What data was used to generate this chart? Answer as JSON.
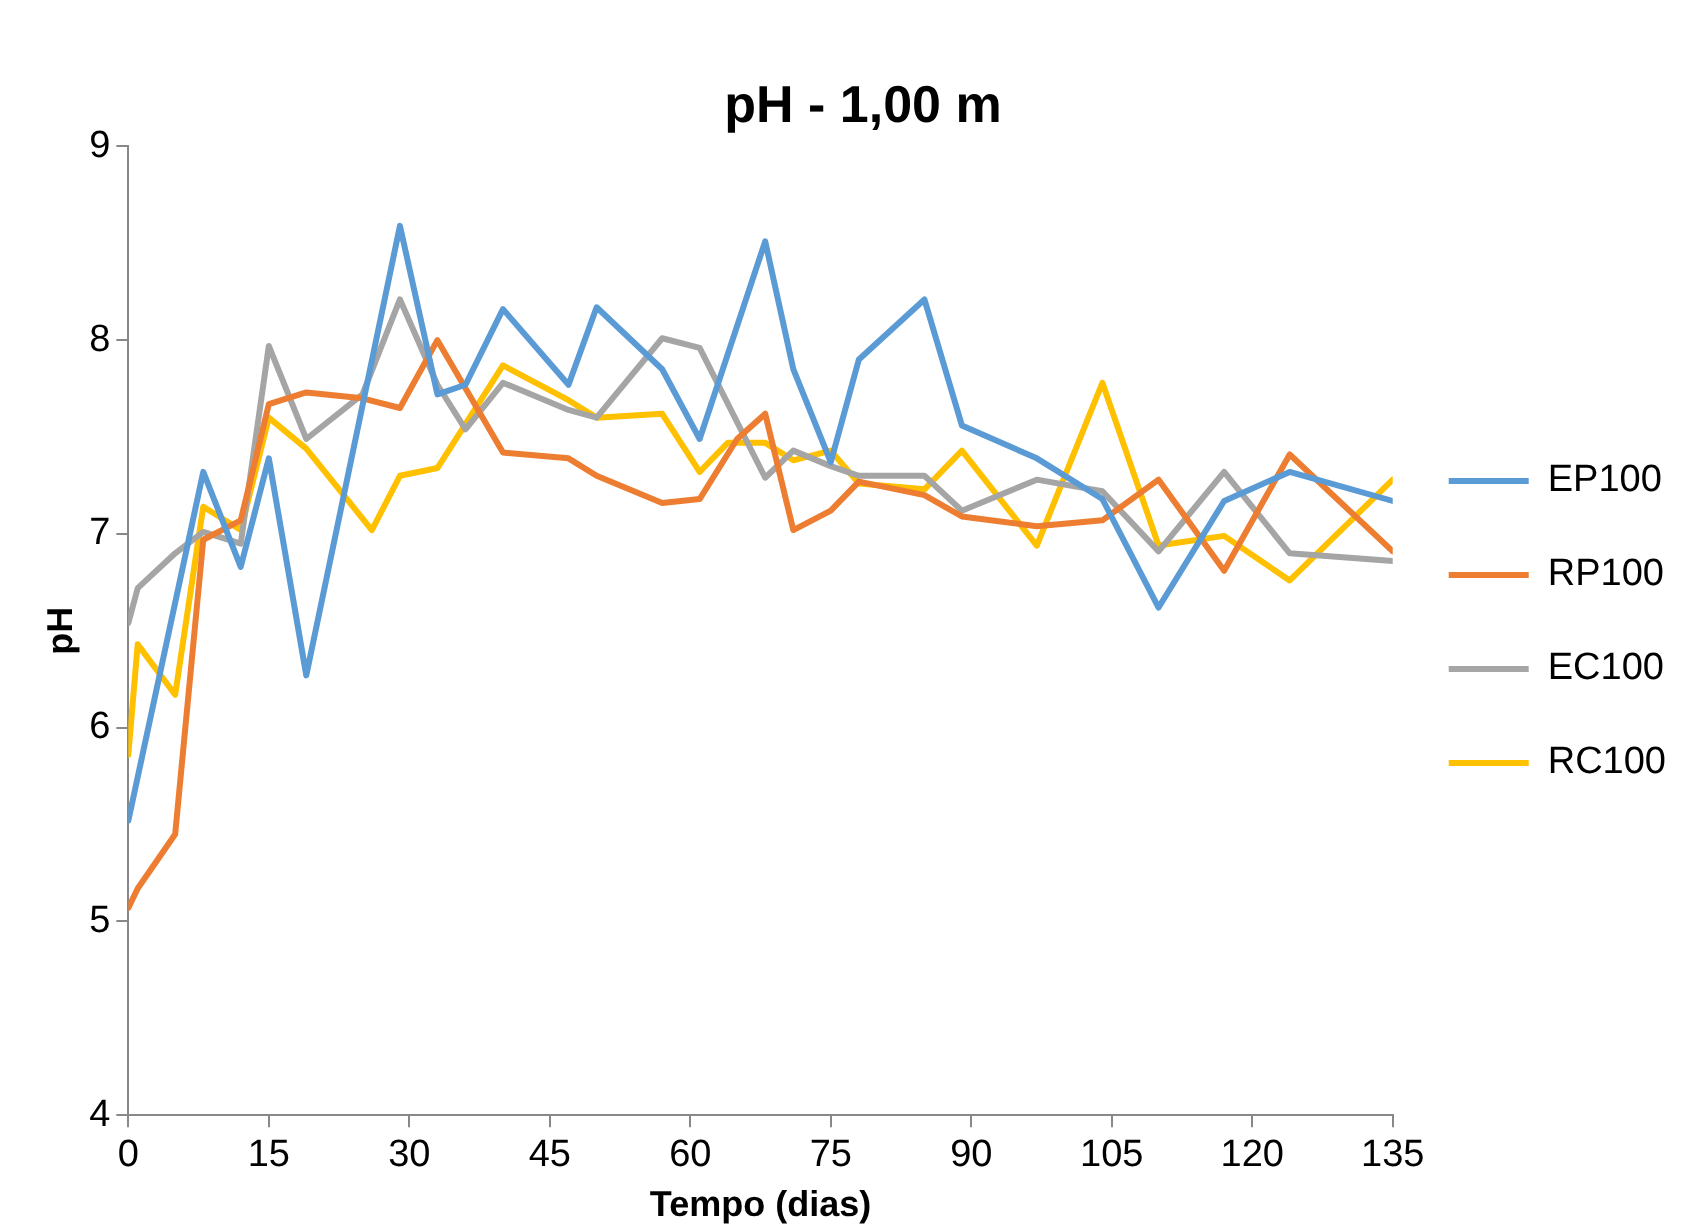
{
  "chart_data": {
    "type": "line",
    "title": "pH - 1,00 m",
    "xlabel": "Tempo (dias)",
    "ylabel": "pH",
    "xlim": [
      0,
      135
    ],
    "xticks": [
      0,
      15,
      30,
      45,
      60,
      75,
      90,
      105,
      120,
      135
    ],
    "ylim": [
      4,
      9
    ],
    "yticks": [
      4,
      5,
      6,
      7,
      8,
      9
    ],
    "grid": false,
    "legend": "right",
    "marker": "none",
    "line_style": "solid",
    "series": [
      {
        "name": "EP100",
        "color": "#5b9bd5",
        "x": [
          0,
          8,
          12,
          15,
          19,
          29,
          33,
          36,
          40,
          47,
          50,
          57,
          61,
          68,
          71,
          75,
          78,
          85,
          89,
          97,
          104,
          110,
          117,
          124,
          135
        ],
        "values": [
          5.52,
          7.32,
          6.83,
          7.39,
          6.27,
          8.59,
          7.72,
          7.77,
          8.16,
          7.77,
          8.17,
          7.85,
          7.49,
          8.51,
          7.85,
          7.37,
          7.9,
          8.21,
          7.56,
          7.39,
          7.18,
          6.62,
          7.17,
          7.32,
          7.17
        ]
      },
      {
        "name": "RP100",
        "color": "#ed7d31",
        "x": [
          0,
          1,
          5,
          8,
          12,
          15,
          19,
          25,
          29,
          33,
          40,
          47,
          50,
          57,
          61,
          65,
          68,
          71,
          75,
          78,
          85,
          89,
          97,
          104,
          110,
          117,
          124,
          135
        ],
        "values": [
          5.07,
          5.17,
          5.45,
          6.97,
          7.07,
          7.67,
          7.73,
          7.7,
          7.65,
          8.0,
          7.42,
          7.39,
          7.3,
          7.16,
          7.18,
          7.49,
          7.62,
          7.02,
          7.12,
          7.27,
          7.2,
          7.09,
          7.04,
          7.07,
          7.28,
          6.81,
          7.41,
          6.91
        ]
      },
      {
        "name": "EC100",
        "color": "#a5a5a5",
        "x": [
          0,
          1,
          5,
          8,
          12,
          15,
          19,
          25,
          29,
          33,
          36,
          40,
          47,
          50,
          57,
          61,
          68,
          71,
          75,
          78,
          85,
          89,
          97,
          104,
          110,
          117,
          124,
          135
        ],
        "values": [
          6.54,
          6.72,
          6.9,
          7.01,
          6.95,
          7.97,
          7.49,
          7.72,
          8.21,
          7.77,
          7.54,
          7.78,
          7.64,
          7.6,
          8.01,
          7.96,
          7.29,
          7.43,
          7.35,
          7.3,
          7.3,
          7.12,
          7.28,
          7.22,
          6.91,
          7.32,
          6.9,
          6.86
        ]
      },
      {
        "name": "RC100",
        "color": "#ffc000",
        "x": [
          0,
          1,
          5,
          8,
          12,
          15,
          19,
          26,
          29,
          33,
          40,
          47,
          50,
          57,
          61,
          64,
          68,
          71,
          75,
          78,
          85,
          89,
          97,
          104,
          110,
          117,
          124,
          135
        ],
        "values": [
          5.86,
          6.43,
          6.17,
          7.14,
          7.02,
          7.6,
          7.44,
          7.02,
          7.3,
          7.34,
          7.87,
          7.69,
          7.6,
          7.62,
          7.32,
          7.47,
          7.47,
          7.38,
          7.43,
          7.26,
          7.23,
          7.43,
          6.94,
          7.78,
          6.94,
          6.99,
          6.76,
          7.28
        ]
      }
    ]
  }
}
